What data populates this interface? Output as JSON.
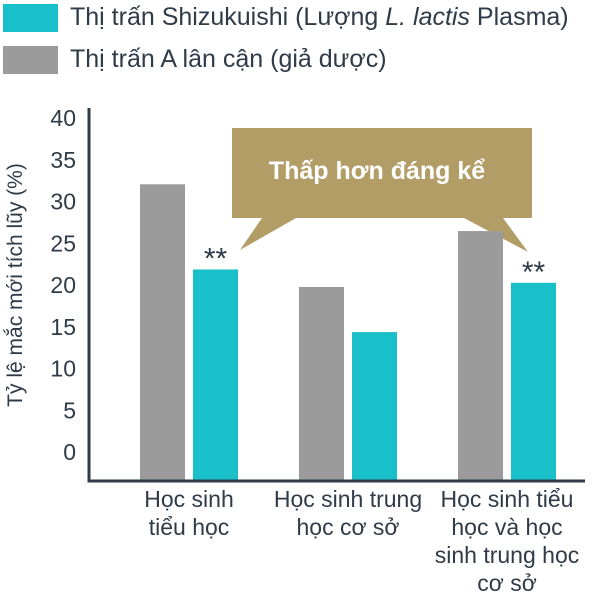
{
  "legend": {
    "items": [
      {
        "label_prefix": "Thị trấn Shizukuishi (Lượng ",
        "label_italic": "L. lactis",
        "label_suffix": " Plasma)",
        "color": "#19c0c9"
      },
      {
        "label": "Thị trấn A lân cận (giả dược)",
        "color": "#9b9b9b"
      }
    ]
  },
  "callout": {
    "text": "Thấp hơn đáng kể",
    "color": "#b39d67"
  },
  "chart_data": {
    "type": "bar",
    "ylabel": "Tỷ lệ mắc mới tích lũy (%)",
    "ylim": [
      0,
      40
    ],
    "yticks": [
      "40",
      "35",
      "30",
      "25",
      "20",
      "15",
      "10",
      "5",
      "0"
    ],
    "categories": [
      [
        "Học sinh",
        "tiểu học"
      ],
      [
        "Học sinh trung",
        "học cơ sở"
      ],
      [
        "Học sinh tiểu",
        "học và học",
        "sinh trung học",
        "cơ sở"
      ]
    ],
    "series": [
      {
        "values": [
          32.3,
          20.0,
          26.7
        ],
        "color": "#9b9b9b"
      },
      {
        "values": [
          22.1,
          14.6,
          20.5
        ],
        "color": "#19c0c9"
      }
    ],
    "annotations": [
      {
        "category": 0,
        "series": 1,
        "text": "**"
      },
      {
        "category": 2,
        "series": 1,
        "text": "**"
      }
    ],
    "axis_color": "#2f3b48"
  }
}
